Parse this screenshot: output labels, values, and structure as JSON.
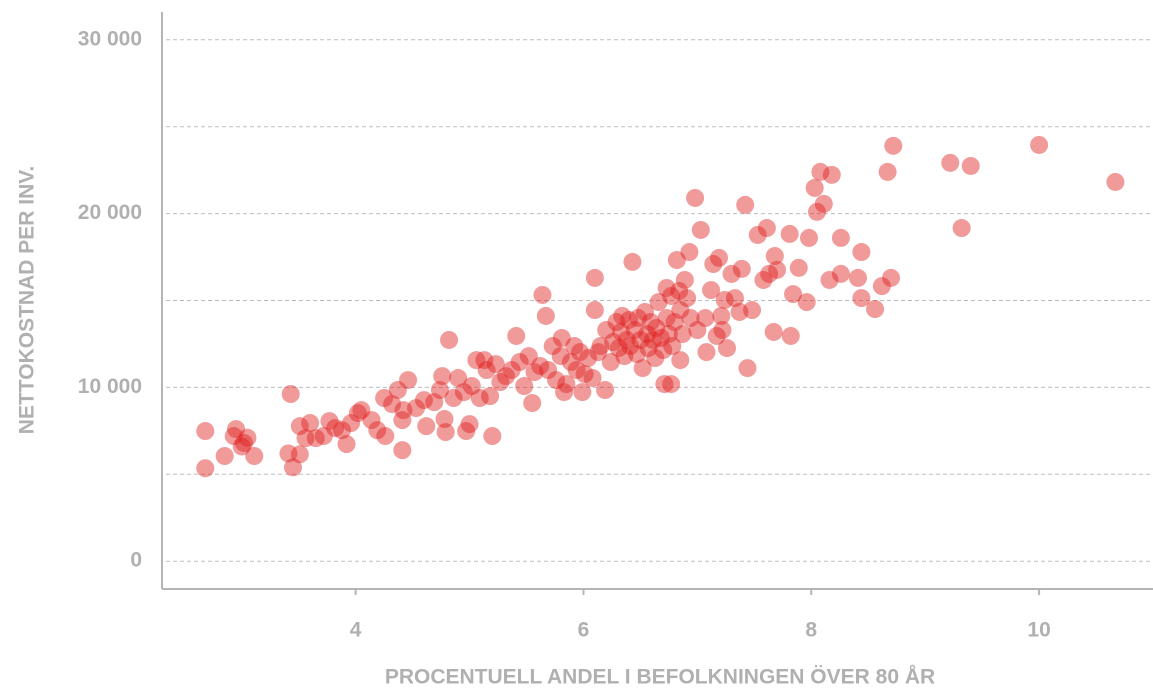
{
  "chart_data": {
    "type": "scatter",
    "xlabel": "PROCENTUELL ANDEL I BEFOLKNINGEN ÖVER 80 ÅR",
    "ylabel": "NETTOKOSTNAD PER INV.",
    "color": "#e01e1e",
    "opacity": 0.45,
    "grid": true,
    "xlim": [
      2.3,
      11.0
    ],
    "ylim": [
      -1600,
      31600
    ],
    "xticks": [
      4,
      6,
      8,
      10
    ],
    "yticks": [
      0,
      {
        "value": 10000,
        "label": "10 000"
      },
      {
        "value": 20000,
        "label": "20 000"
      },
      {
        "value": 30000,
        "label": "30 000"
      }
    ],
    "minor_yticks": [
      5000,
      15000,
      25000
    ],
    "x": [
      2.68,
      2.68,
      2.85,
      2.95,
      2.93,
      3.02,
      3.05,
      3.11,
      3.0,
      3.43,
      3.41,
      3.45,
      3.51,
      3.51,
      3.56,
      3.6,
      3.65,
      3.72,
      3.77,
      3.82,
      3.88,
      3.92,
      3.96,
      4.02,
      4.05,
      4.14,
      4.19,
      4.25,
      4.26,
      4.32,
      4.37,
      4.41,
      4.42,
      4.46,
      4.41,
      4.53,
      4.6,
      4.62,
      4.69,
      4.74,
      4.76,
      4.78,
      4.79,
      4.82,
      4.86,
      4.9,
      4.95,
      4.97,
      5.0,
      5.02,
      5.06,
      5.09,
      5.13,
      5.15,
      5.18,
      5.2,
      5.23,
      5.27,
      5.32,
      5.37,
      5.41,
      5.44,
      5.48,
      5.52,
      5.55,
      5.57,
      5.62,
      5.64,
      5.67,
      5.69,
      5.73,
      5.76,
      5.8,
      5.81,
      5.83,
      5.85,
      5.89,
      5.92,
      5.94,
      5.97,
      5.99,
      6.01,
      6.04,
      6.08,
      6.1,
      6.1,
      6.13,
      6.15,
      6.19,
      6.2,
      6.24,
      6.26,
      6.29,
      6.31,
      6.33,
      6.34,
      6.36,
      6.38,
      6.4,
      6.41,
      6.43,
      6.45,
      6.47,
      6.48,
      6.5,
      6.52,
      6.54,
      6.56,
      6.57,
      6.59,
      6.61,
      6.63,
      6.64,
      6.66,
      6.68,
      6.7,
      6.71,
      6.73,
      6.73,
      6.75,
      6.77,
      6.78,
      6.8,
      6.82,
      6.84,
      6.85,
      6.85,
      6.87,
      6.89,
      6.91,
      6.93,
      6.94,
      6.98,
      7.0,
      7.03,
      7.07,
      7.08,
      7.12,
      7.14,
      7.17,
      7.19,
      7.21,
      7.22,
      7.24,
      7.26,
      7.3,
      7.33,
      7.37,
      7.39,
      7.42,
      7.44,
      7.48,
      7.53,
      7.58,
      7.61,
      7.63,
      7.67,
      7.68,
      7.7,
      7.81,
      7.82,
      7.84,
      7.89,
      7.96,
      7.98,
      8.03,
      8.05,
      8.08,
      8.11,
      8.16,
      8.18,
      8.26,
      8.26,
      8.41,
      8.44,
      8.44,
      8.56,
      8.62,
      8.67,
      8.7,
      8.72,
      9.22,
      9.32,
      9.4,
      10.0,
      10.67,
      6.77
    ],
    "values": [
      7490,
      5350,
      6050,
      7600,
      7200,
      6800,
      7100,
      6050,
      6600,
      9620,
      6200,
      5400,
      6150,
      7770,
      7080,
      7950,
      7080,
      7200,
      8060,
      7660,
      7540,
      6740,
      7950,
      8520,
      8690,
      8120,
      7540,
      9390,
      7200,
      9040,
      9850,
      8120,
      8690,
      10420,
      6390,
      8810,
      9270,
      7770,
      9150,
      9850,
      10650,
      8180,
      7430,
      12730,
      9390,
      10540,
      9730,
      7490,
      7890,
      10080,
      11570,
      9390,
      11570,
      11000,
      9500,
      7200,
      11340,
      10310,
      10650,
      11000,
      12960,
      11460,
      10080,
      11800,
      9100,
      10880,
      11230,
      15320,
      14110,
      11000,
      12380,
      10420,
      11800,
      12840,
      9730,
      10190,
      11460,
      12380,
      11000,
      12030,
      9730,
      10770,
      11690,
      10540,
      16300,
      14450,
      12030,
      12380,
      9850,
      13300,
      11460,
      12610,
      13760,
      12260,
      13190,
      14110,
      11800,
      12730,
      13880,
      12380,
      17220,
      13300,
      11920,
      13990,
      12730,
      11110,
      14340,
      13070,
      12260,
      13760,
      12730,
      11690,
      13420,
      14910,
      12840,
      12150,
      10190,
      15720,
      13990,
      13070,
      15260,
      12380,
      13760,
      17330,
      15550,
      14450,
      11570,
      13070,
      16180,
      15140,
      17790,
      13990,
      20900,
      13300,
      19060,
      13990,
      12030,
      15600,
      17100,
      12960,
      17450,
      14110,
      13300,
      15030,
      12260,
      16530,
      15140,
      14340,
      16820,
      20500,
      11110,
      14450,
      18770,
      16180,
      19170,
      16530,
      13190,
      17560,
      16760,
      18830,
      12960,
      15370,
      16880,
      14910,
      18600,
      21480,
      20100,
      22400,
      20560,
      16180,
      22230,
      18600,
      16530,
      16300,
      15140,
      17790,
      14510,
      15830,
      22400,
      16300,
      23900,
      22920,
      19170,
      22740,
      23950,
      21820,
      10190
    ]
  }
}
